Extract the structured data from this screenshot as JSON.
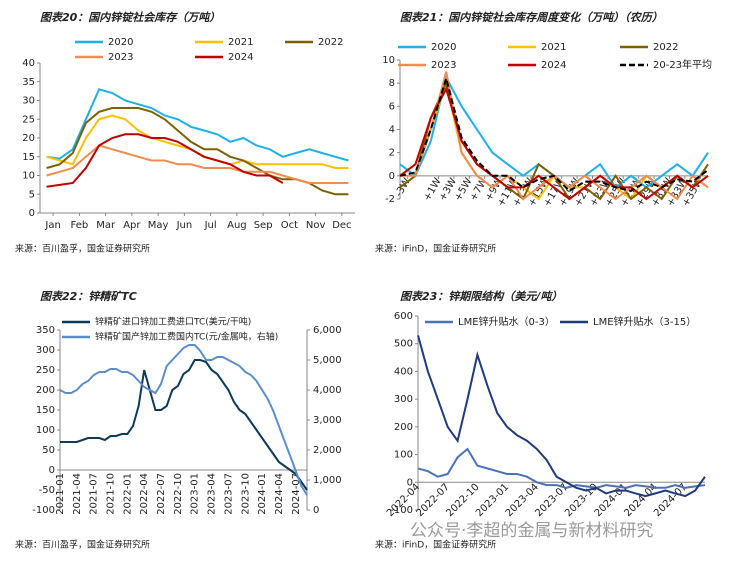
{
  "chart_data": [
    {
      "type": "line",
      "title": "图表20：国内锌锭社会库存（万吨）",
      "source": "来源：百川盈孚，国金证券研究所",
      "x": [
        0.25,
        0.75,
        1.25,
        1.75,
        2.25,
        2.75,
        3.25,
        3.75,
        4.25,
        4.75,
        5.25,
        5.75,
        6.25,
        6.75,
        7.25,
        7.75,
        8.25,
        8.75,
        9.25,
        9.75,
        10.25,
        10.75,
        11.25,
        11.75
      ],
      "xlim": [
        0,
        12
      ],
      "xticks": [
        {
          "value": 0.5,
          "label": "Jan"
        },
        {
          "value": 1.5,
          "label": "Feb"
        },
        {
          "value": 2.5,
          "label": "Mar"
        },
        {
          "value": 3.5,
          "label": "Apr"
        },
        {
          "value": 4.5,
          "label": "May"
        },
        {
          "value": 5.5,
          "label": "Jun"
        },
        {
          "value": 6.5,
          "label": "Jul"
        },
        {
          "value": 7.5,
          "label": "Aug"
        },
        {
          "value": 8.5,
          "label": "Sep"
        },
        {
          "value": 9.5,
          "label": "Oct"
        },
        {
          "value": 10.5,
          "label": "Nov"
        },
        {
          "value": 11.5,
          "label": "Dec"
        }
      ],
      "ylim": [
        0,
        40
      ],
      "yticks": [
        0,
        5,
        10,
        15,
        20,
        25,
        30,
        35,
        40
      ],
      "series": [
        {
          "name": "2020",
          "color": "#1fb0e6",
          "values": [
            15,
            14.5,
            17,
            25,
            33,
            32,
            30,
            29,
            28,
            26,
            25,
            23,
            22,
            21,
            19,
            20,
            18,
            17,
            15,
            16,
            17,
            16,
            15,
            14
          ]
        },
        {
          "name": "2021",
          "color": "#ffc000",
          "values": [
            15,
            14,
            13,
            20,
            25,
            26,
            25,
            22,
            20,
            19,
            18,
            17,
            15,
            14,
            13,
            14,
            13,
            13,
            13,
            13,
            13,
            13,
            12,
            12
          ]
        },
        {
          "name": "2022",
          "color": "#7f6000",
          "values": [
            12,
            13,
            16,
            24,
            27,
            28,
            28,
            28,
            27,
            25,
            22,
            19,
            17,
            17,
            15,
            14,
            12,
            10,
            9,
            9,
            8,
            6,
            5,
            5
          ]
        },
        {
          "name": "2023",
          "color": "#f08c50",
          "values": [
            10,
            11,
            12,
            15,
            18,
            17,
            16,
            15,
            14,
            14,
            13,
            13,
            12,
            12,
            12,
            11,
            11,
            11,
            10,
            9,
            8,
            8,
            8,
            8
          ]
        },
        {
          "name": "2024",
          "color": "#c00000",
          "values": [
            7,
            7.5,
            8,
            12,
            18,
            20,
            21,
            21,
            20,
            20,
            19,
            17,
            15,
            14,
            13,
            11,
            10,
            10,
            8,
            null,
            null,
            null,
            null,
            null
          ]
        }
      ]
    },
    {
      "type": "line",
      "title": "图表21：国内锌锭社会库存周度变化（万吨）（农历）",
      "source": "来源：iFinD，国金证券研究所",
      "x": [
        -4,
        -2,
        0,
        2,
        4,
        6,
        8,
        10,
        12,
        14,
        16,
        18,
        20,
        22,
        24,
        26,
        28,
        30,
        32,
        34,
        36
      ],
      "xlim": [
        -4,
        36
      ],
      "xticks": [
        {
          "value": -3,
          "label": "-3W"
        },
        {
          "value": 1,
          "label": "+1W"
        },
        {
          "value": 3,
          "label": "+3W"
        },
        {
          "value": 5,
          "label": "+5W"
        },
        {
          "value": 7,
          "label": "+7W"
        },
        {
          "value": 9,
          "label": "+9W"
        },
        {
          "value": 11,
          "label": "+11W"
        },
        {
          "value": 13,
          "label": "+13W"
        },
        {
          "value": 15,
          "label": "+15W"
        },
        {
          "value": 17,
          "label": "+17W"
        },
        {
          "value": 19,
          "label": "+19W"
        },
        {
          "value": 21,
          "label": "+21W"
        },
        {
          "value": 23,
          "label": "+23W"
        },
        {
          "value": 25,
          "label": "+25W"
        },
        {
          "value": 27,
          "label": "+27W"
        },
        {
          "value": 29,
          "label": "+29W"
        },
        {
          "value": 31,
          "label": "+31W"
        },
        {
          "value": 33,
          "label": "+33W"
        },
        {
          "value": 35,
          "label": "+35W"
        }
      ],
      "ylim": [
        -2,
        10
      ],
      "yticks": [
        -2,
        0,
        2,
        4,
        6,
        8,
        10
      ],
      "series": [
        {
          "name": "2020",
          "color": "#1fb0e6",
          "values": [
            1,
            0,
            3,
            8.5,
            6,
            4,
            2,
            1,
            0,
            1,
            0,
            -1,
            0,
            1,
            -1,
            0,
            -1,
            0,
            1,
            0,
            2
          ]
        },
        {
          "name": "2021",
          "color": "#ffc000",
          "values": [
            0,
            1,
            4,
            8,
            2,
            0,
            -1,
            0,
            -1,
            -2,
            0,
            -1,
            -1,
            0,
            -1,
            -2,
            0,
            -1,
            0,
            -1,
            0
          ]
        },
        {
          "name": "2022",
          "color": "#7f6000",
          "values": [
            -1,
            0,
            5,
            8,
            3,
            1,
            0,
            -1,
            -2,
            1,
            0,
            -2,
            -1,
            -2,
            0,
            -2,
            -1,
            -2,
            0,
            -1,
            1
          ]
        },
        {
          "name": "2023",
          "color": "#f08c50",
          "values": [
            0,
            0,
            4,
            9,
            2,
            0,
            -1,
            0,
            -2,
            -1,
            0,
            -1,
            0,
            -1,
            -2,
            -1,
            0,
            -1,
            -2,
            0,
            -1
          ]
        },
        {
          "name": "2024",
          "color": "#c00000",
          "values": [
            0,
            1,
            5,
            7.5,
            3,
            1,
            0,
            -1,
            -1,
            0,
            -1,
            -2,
            -1,
            0,
            -1,
            -1,
            -2,
            -1,
            0,
            -1,
            0
          ]
        },
        {
          "name": "20-23年平均",
          "color": "#000000",
          "dash": true,
          "values": [
            0,
            0.3,
            4,
            8.4,
            3.3,
            1.3,
            0,
            0,
            -1,
            -0.3,
            0,
            -1.3,
            -0.5,
            -0.5,
            -1,
            -1.3,
            -0.5,
            -1,
            -0.3,
            -0.5,
            0.5
          ]
        }
      ]
    },
    {
      "type": "line",
      "title": "图表22：锌精矿TC",
      "source": "来源：百川盈孚，国金证券研究所",
      "categories": [
        "2021-01",
        null,
        null,
        "2021-04",
        null,
        null,
        "2021-07",
        null,
        null,
        "2021-10",
        null,
        null,
        "2022-01",
        null,
        null,
        "2022-04",
        null,
        null,
        "2022-07",
        null,
        null,
        "2022-10",
        null,
        null,
        "2023-01",
        null,
        null,
        "2023-04",
        null,
        null,
        "2023-07",
        null,
        null,
        "2023-10",
        null,
        null,
        "2024-01",
        null,
        null,
        "2024-04",
        null,
        null,
        "2024-07",
        null,
        null
      ],
      "ylim": [
        -100,
        350
      ],
      "yticks": [
        -100,
        -50,
        0,
        50,
        100,
        150,
        200,
        250,
        300,
        350
      ],
      "y2lim": [
        0,
        6000
      ],
      "y2ticks": [
        0,
        {
          "value": 1000,
          "label": "1,000"
        },
        {
          "value": 2000,
          "label": "2,000"
        },
        {
          "value": 3000,
          "label": "3,000"
        },
        {
          "value": 4000,
          "label": "4,000"
        },
        {
          "value": 5000,
          "label": "5,000"
        },
        {
          "value": 6000,
          "label": "6,000"
        }
      ],
      "series": [
        {
          "name": "锌精矿进口锌加工费进口TC(美元/干吨)",
          "color": "#0e3a5a",
          "values": [
            70,
            70,
            70,
            70,
            75,
            80,
            80,
            80,
            75,
            85,
            85,
            90,
            90,
            110,
            160,
            250,
            200,
            150,
            150,
            160,
            200,
            210,
            240,
            250,
            275,
            275,
            270,
            250,
            240,
            220,
            200,
            170,
            150,
            140,
            120,
            100,
            80,
            60,
            40,
            20,
            10,
            0,
            -10,
            -30,
            -50
          ]
        },
        {
          "name": "锌精矿国产锌加工费国内TC(元/金属吨，右轴)",
          "color": "#5b8ec9",
          "axis": "y2",
          "values": [
            4000,
            3900,
            3900,
            4000,
            4200,
            4300,
            4500,
            4600,
            4600,
            4700,
            4700,
            4600,
            4600,
            4500,
            4300,
            4100,
            4000,
            3900,
            4200,
            4800,
            5000,
            5200,
            5400,
            5500,
            5500,
            5300,
            5000,
            5000,
            5100,
            5100,
            5000,
            4900,
            4800,
            4600,
            4500,
            4300,
            4000,
            3700,
            3300,
            2800,
            2300,
            1800,
            1300,
            800,
            500
          ]
        }
      ]
    },
    {
      "type": "line",
      "title": "图表23：锌期限结构（美元/吨）",
      "source": "来源：iFinD，国金证券研究所",
      "categories": [
        "2022-04",
        null,
        null,
        "2022-07",
        null,
        null,
        "2022-10",
        null,
        null,
        "2023-01",
        null,
        null,
        "2023-04",
        null,
        null,
        "2023-07",
        null,
        null,
        "2023-10",
        null,
        null,
        "2024-01",
        null,
        null,
        "2024-04",
        null,
        null,
        "2024-07",
        null,
        null
      ],
      "ylim": [
        -100,
        600
      ],
      "yticks": [
        -100,
        0,
        100,
        200,
        300,
        400,
        500,
        600
      ],
      "series": [
        {
          "name": "LME锌升贴水（0-3）",
          "color": "#4a72b8",
          "values": [
            50,
            40,
            20,
            30,
            90,
            120,
            60,
            50,
            40,
            30,
            30,
            20,
            0,
            -10,
            -10,
            -20,
            -10,
            -15,
            -20,
            -10,
            -15,
            -20,
            -10,
            -15,
            -20,
            -20,
            -10,
            -20,
            -15,
            -10
          ]
        },
        {
          "name": "LME锌升贴水（3-15）",
          "color": "#1f3b7a",
          "values": [
            530,
            400,
            300,
            200,
            150,
            300,
            460,
            350,
            250,
            200,
            170,
            150,
            120,
            80,
            20,
            0,
            -20,
            -30,
            -20,
            -40,
            -30,
            -30,
            -40,
            -50,
            -40,
            -30,
            -40,
            -50,
            -30,
            20
          ]
        }
      ]
    }
  ],
  "watermark": "公众号·李超的金属与新材料研究"
}
